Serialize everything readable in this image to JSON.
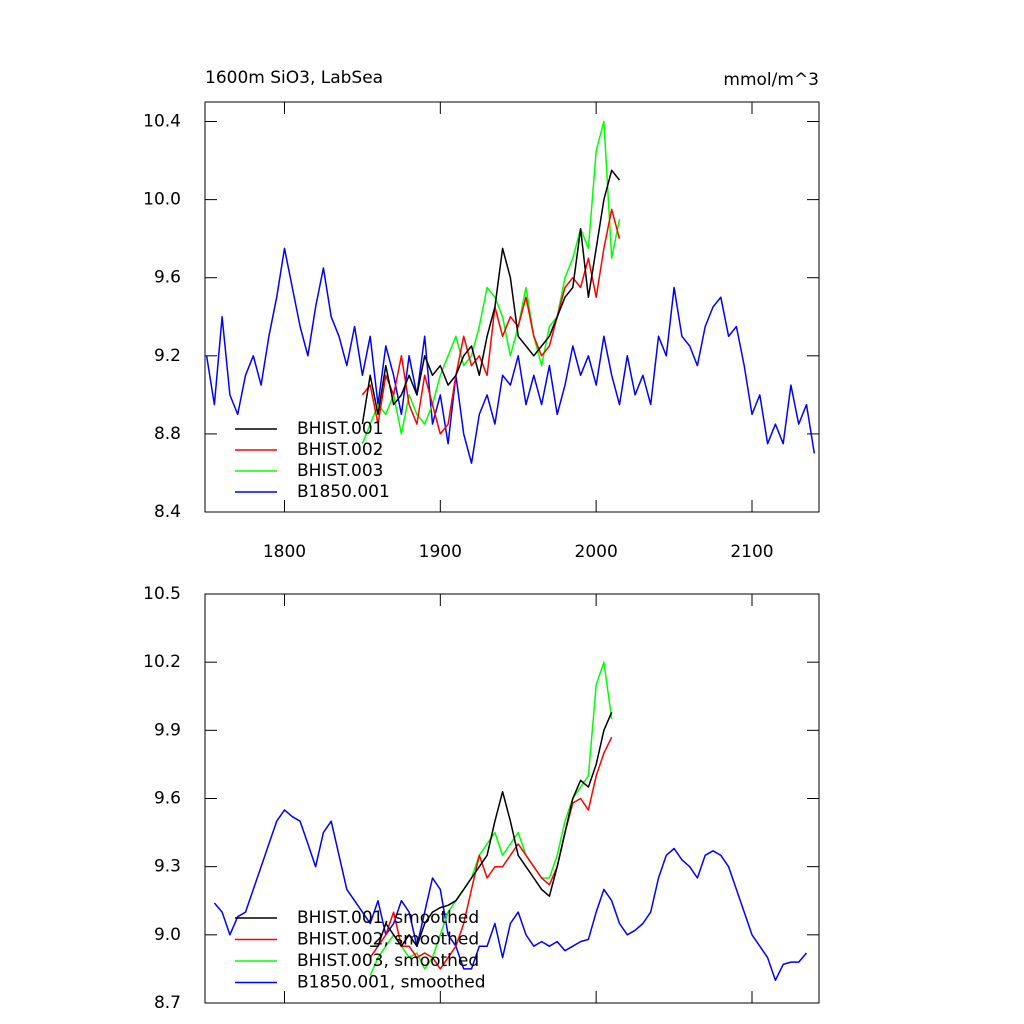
{
  "chart_data": [
    {
      "type": "line",
      "title": "1600m SiO3, LabSea",
      "subtitle": "mmol/m^3",
      "xlim": [
        1749,
        2143
      ],
      "xticks": [
        1800,
        1900,
        2000,
        2100
      ],
      "ylim": [
        8.4,
        10.5
      ],
      "yticks": [
        8.4,
        8.8,
        9.2,
        9.6,
        {
          "value": 10,
          "label": "10.0"
        },
        10.4
      ],
      "legend": "lower-left",
      "series": [
        {
          "name": "BHIST.001",
          "color": "#000000",
          "x": [
            1850,
            1855,
            1860,
            1865,
            1870,
            1875,
            1880,
            1885,
            1890,
            1895,
            1900,
            1905,
            1910,
            1915,
            1920,
            1925,
            1930,
            1935,
            1940,
            1945,
            1950,
            1955,
            1960,
            1965,
            1970,
            1975,
            1980,
            1985,
            1990,
            1995,
            2000,
            2005,
            2010,
            2015
          ],
          "values": [
            8.85,
            9.1,
            8.9,
            9.15,
            8.95,
            9.0,
            9.1,
            9.0,
            9.2,
            9.1,
            9.15,
            9.05,
            9.1,
            9.2,
            9.25,
            9.1,
            9.3,
            9.45,
            9.75,
            9.6,
            9.3,
            9.25,
            9.2,
            9.25,
            9.3,
            9.4,
            9.5,
            9.55,
            9.85,
            9.5,
            9.75,
            10.0,
            10.15,
            10.1
          ]
        },
        {
          "name": "BHIST.002",
          "color": "#ff0000",
          "x": [
            1850,
            1855,
            1860,
            1865,
            1870,
            1875,
            1880,
            1885,
            1890,
            1895,
            1900,
            1905,
            1910,
            1915,
            1920,
            1925,
            1930,
            1935,
            1940,
            1945,
            1950,
            1955,
            1960,
            1965,
            1970,
            1975,
            1980,
            1985,
            1990,
            1995,
            2000,
            2005,
            2010,
            2015
          ],
          "values": [
            9.0,
            9.05,
            8.85,
            9.1,
            9.0,
            9.2,
            8.95,
            8.85,
            9.1,
            8.95,
            8.8,
            8.85,
            9.1,
            9.3,
            9.15,
            9.2,
            9.1,
            9.45,
            9.3,
            9.4,
            9.35,
            9.5,
            9.3,
            9.2,
            9.25,
            9.4,
            9.55,
            9.6,
            9.55,
            9.7,
            9.5,
            9.75,
            9.95,
            9.8
          ]
        },
        {
          "name": "BHIST.003",
          "color": "#00ff00",
          "x": [
            1850,
            1855,
            1860,
            1865,
            1870,
            1875,
            1880,
            1885,
            1890,
            1895,
            1900,
            1905,
            1910,
            1915,
            1920,
            1925,
            1930,
            1935,
            1940,
            1945,
            1950,
            1955,
            1960,
            1965,
            1970,
            1975,
            1980,
            1985,
            1990,
            1995,
            2000,
            2005,
            2010,
            2015
          ],
          "values": [
            8.75,
            8.85,
            8.95,
            8.9,
            9.0,
            8.8,
            9.0,
            8.9,
            8.85,
            8.95,
            9.1,
            9.2,
            9.3,
            9.15,
            9.2,
            9.35,
            9.55,
            9.5,
            9.4,
            9.2,
            9.35,
            9.55,
            9.3,
            9.15,
            9.35,
            9.4,
            9.6,
            9.7,
            9.85,
            9.75,
            10.25,
            10.4,
            9.7,
            9.9
          ]
        },
        {
          "name": "B1850.001",
          "color": "#0000ff",
          "x": [
            1750,
            1755,
            1760,
            1765,
            1770,
            1775,
            1780,
            1785,
            1790,
            1795,
            1800,
            1805,
            1810,
            1815,
            1820,
            1825,
            1830,
            1835,
            1840,
            1845,
            1850,
            1855,
            1860,
            1865,
            1870,
            1875,
            1880,
            1885,
            1890,
            1895,
            1900,
            1905,
            1910,
            1915,
            1920,
            1925,
            1930,
            1935,
            1940,
            1945,
            1950,
            1955,
            1960,
            1965,
            1970,
            1975,
            1980,
            1985,
            1990,
            1995,
            2000,
            2005,
            2010,
            2015,
            2020,
            2025,
            2030,
            2035,
            2040,
            2045,
            2050,
            2055,
            2060,
            2065,
            2070,
            2075,
            2080,
            2085,
            2090,
            2095,
            2100,
            2105,
            2110,
            2115,
            2120,
            2125,
            2130,
            2135,
            2140
          ],
          "values": [
            9.2,
            8.95,
            9.4,
            9.0,
            8.9,
            9.1,
            9.2,
            9.05,
            9.3,
            9.5,
            9.75,
            9.55,
            9.35,
            9.2,
            9.45,
            9.65,
            9.4,
            9.3,
            9.15,
            9.35,
            9.1,
            9.3,
            8.95,
            9.25,
            9.1,
            8.9,
            9.2,
            9.0,
            9.3,
            8.85,
            9.0,
            8.75,
            9.1,
            8.8,
            8.65,
            8.9,
            9.0,
            8.85,
            9.1,
            9.05,
            9.2,
            8.95,
            9.1,
            8.95,
            9.15,
            8.9,
            9.05,
            9.25,
            9.1,
            9.2,
            9.05,
            9.3,
            9.1,
            8.95,
            9.2,
            9.0,
            9.1,
            8.95,
            9.3,
            9.2,
            9.55,
            9.3,
            9.25,
            9.15,
            9.35,
            9.45,
            9.5,
            9.3,
            9.35,
            9.15,
            8.9,
            9.0,
            8.75,
            8.85,
            8.75,
            9.05,
            8.85,
            8.95,
            8.7
          ]
        }
      ]
    },
    {
      "type": "line",
      "xlim": [
        1749,
        2143
      ],
      "ylim": [
        8.7,
        10.5
      ],
      "yticks": [
        8.7,
        {
          "value": 9,
          "label": "9.0"
        },
        9.3,
        9.6,
        9.9,
        10.2,
        10.5
      ],
      "legend": "lower-left",
      "series": [
        {
          "name": "BHIST.001, smoothed",
          "color": "#000000",
          "x": [
            1855,
            1860,
            1865,
            1870,
            1875,
            1880,
            1885,
            1890,
            1895,
            1900,
            1905,
            1910,
            1915,
            1920,
            1925,
            1930,
            1935,
            1940,
            1945,
            1950,
            1955,
            1960,
            1965,
            1970,
            1975,
            1980,
            1985,
            1990,
            1995,
            2000,
            2005,
            2010
          ],
          "values": [
            8.95,
            8.95,
            9.05,
            9.0,
            8.95,
            9.0,
            8.95,
            9.05,
            9.1,
            9.12,
            9.13,
            9.15,
            9.2,
            9.25,
            9.3,
            9.35,
            9.5,
            9.63,
            9.5,
            9.35,
            9.3,
            9.25,
            9.2,
            9.17,
            9.3,
            9.45,
            9.6,
            9.68,
            9.65,
            9.75,
            9.9,
            9.98
          ]
        },
        {
          "name": "BHIST.002, smoothed",
          "color": "#ff0000",
          "x": [
            1855,
            1860,
            1865,
            1870,
            1875,
            1880,
            1885,
            1890,
            1895,
            1900,
            1905,
            1910,
            1915,
            1920,
            1925,
            1930,
            1935,
            1940,
            1945,
            1950,
            1955,
            1960,
            1965,
            1970,
            1975,
            1980,
            1985,
            1990,
            1995,
            2000,
            2005,
            2010
          ],
          "values": [
            8.9,
            8.95,
            9.0,
            9.1,
            8.95,
            8.95,
            8.9,
            8.92,
            8.9,
            8.85,
            8.9,
            8.95,
            9.05,
            9.2,
            9.35,
            9.25,
            9.3,
            9.3,
            9.35,
            9.4,
            9.35,
            9.3,
            9.25,
            9.22,
            9.3,
            9.45,
            9.58,
            9.6,
            9.55,
            9.7,
            9.8,
            9.87
          ]
        },
        {
          "name": "BHIST.003, smoothed",
          "color": "#00ff00",
          "x": [
            1855,
            1860,
            1865,
            1870,
            1875,
            1880,
            1885,
            1890,
            1895,
            1900,
            1905,
            1910,
            1915,
            1920,
            1925,
            1930,
            1935,
            1940,
            1945,
            1950,
            1955,
            1960,
            1965,
            1970,
            1975,
            1980,
            1985,
            1990,
            1995,
            2000,
            2005,
            2010
          ],
          "values": [
            8.82,
            8.9,
            8.95,
            9.0,
            8.95,
            8.9,
            8.92,
            8.85,
            8.9,
            9.0,
            9.1,
            9.15,
            9.2,
            9.25,
            9.35,
            9.4,
            9.45,
            9.35,
            9.4,
            9.45,
            9.35,
            9.3,
            9.25,
            9.25,
            9.35,
            9.5,
            9.6,
            9.65,
            9.7,
            10.1,
            10.2,
            9.95
          ]
        },
        {
          "name": "B1850.001, smoothed",
          "color": "#0000ff",
          "x": [
            1755,
            1760,
            1765,
            1770,
            1775,
            1780,
            1785,
            1790,
            1795,
            1800,
            1805,
            1810,
            1815,
            1820,
            1825,
            1830,
            1835,
            1840,
            1845,
            1850,
            1855,
            1860,
            1865,
            1870,
            1875,
            1880,
            1885,
            1890,
            1895,
            1900,
            1905,
            1910,
            1915,
            1920,
            1925,
            1930,
            1935,
            1940,
            1945,
            1950,
            1955,
            1960,
            1965,
            1970,
            1975,
            1980,
            1985,
            1990,
            1995,
            2000,
            2005,
            2010,
            2015,
            2020,
            2025,
            2030,
            2035,
            2040,
            2045,
            2050,
            2055,
            2060,
            2065,
            2070,
            2075,
            2080,
            2085,
            2090,
            2095,
            2100,
            2105,
            2110,
            2115,
            2120,
            2125,
            2130,
            2135
          ],
          "values": [
            9.14,
            9.1,
            9.0,
            9.08,
            9.1,
            9.2,
            9.3,
            9.4,
            9.5,
            9.55,
            9.52,
            9.5,
            9.4,
            9.3,
            9.45,
            9.5,
            9.35,
            9.2,
            9.15,
            9.1,
            9.05,
            9.15,
            9.0,
            9.05,
            9.15,
            9.1,
            8.95,
            9.1,
            9.25,
            9.2,
            9.0,
            8.95,
            8.85,
            8.85,
            8.95,
            8.95,
            9.05,
            8.9,
            9.05,
            9.1,
            9.0,
            8.95,
            8.97,
            8.95,
            8.97,
            8.93,
            8.95,
            8.97,
            8.98,
            9.1,
            9.2,
            9.15,
            9.05,
            9.0,
            9.02,
            9.05,
            9.1,
            9.25,
            9.35,
            9.38,
            9.33,
            9.3,
            9.25,
            9.35,
            9.37,
            9.35,
            9.3,
            9.2,
            9.1,
            9.0,
            8.95,
            8.9,
            8.8,
            8.87,
            8.88,
            8.88,
            8.92
          ]
        }
      ]
    }
  ]
}
